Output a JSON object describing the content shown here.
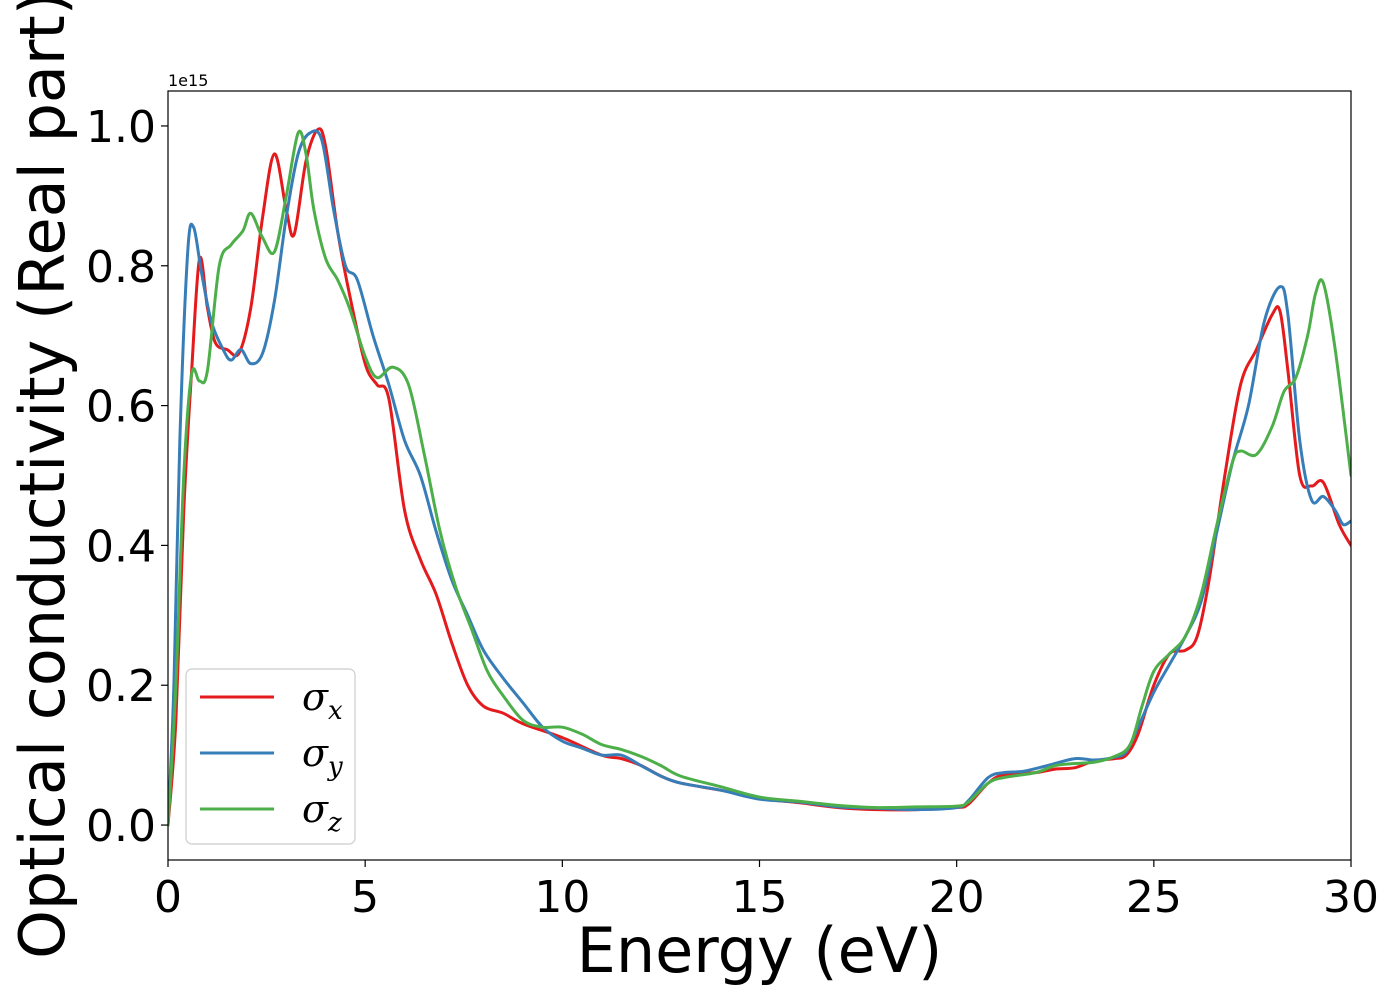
{
  "chart_data": {
    "type": "line",
    "title": "",
    "xlabel": "Energy (eV)",
    "ylabel": "Optical conductivity (Real part)",
    "y_offset_label": "1e15",
    "xlim": [
      0,
      30
    ],
    "ylim": [
      -0.05,
      1.05
    ],
    "x_ticks": [
      0,
      5,
      10,
      15,
      20,
      25,
      30
    ],
    "x_tick_labels": [
      "0",
      "5",
      "10",
      "15",
      "20",
      "25",
      "30"
    ],
    "y_ticks": [
      0.0,
      0.2,
      0.4,
      0.6,
      0.8,
      1.0
    ],
    "y_tick_labels": [
      "0.0",
      "0.2",
      "0.4",
      "0.6",
      "0.8",
      "1.0"
    ],
    "grid": false,
    "legend_position": "lower-left",
    "series": [
      {
        "name": "σx",
        "legend_base": "σ",
        "legend_sub": "x",
        "color": "#e41a1c",
        "points": [
          [
            0,
            0
          ],
          [
            0.2,
            0.15
          ],
          [
            0.4,
            0.45
          ],
          [
            0.6,
            0.65
          ],
          [
            0.8,
            0.81
          ],
          [
            1.0,
            0.74
          ],
          [
            1.2,
            0.69
          ],
          [
            1.5,
            0.68
          ],
          [
            1.8,
            0.675
          ],
          [
            2.1,
            0.74
          ],
          [
            2.4,
            0.87
          ],
          [
            2.7,
            0.96
          ],
          [
            3.0,
            0.88
          ],
          [
            3.2,
            0.845
          ],
          [
            3.5,
            0.95
          ],
          [
            3.8,
            0.995
          ],
          [
            4.0,
            0.97
          ],
          [
            4.3,
            0.85
          ],
          [
            4.6,
            0.76
          ],
          [
            5.0,
            0.66
          ],
          [
            5.3,
            0.63
          ],
          [
            5.6,
            0.61
          ],
          [
            6.0,
            0.45
          ],
          [
            6.4,
            0.38
          ],
          [
            6.8,
            0.33
          ],
          [
            7.2,
            0.26
          ],
          [
            7.6,
            0.2
          ],
          [
            8.0,
            0.17
          ],
          [
            8.5,
            0.16
          ],
          [
            9.0,
            0.145
          ],
          [
            10.0,
            0.125
          ],
          [
            11.0,
            0.1
          ],
          [
            11.5,
            0.095
          ],
          [
            12.0,
            0.085
          ],
          [
            12.5,
            0.07
          ],
          [
            13.0,
            0.06
          ],
          [
            14.0,
            0.05
          ],
          [
            15.0,
            0.038
          ],
          [
            16.0,
            0.032
          ],
          [
            17.0,
            0.025
          ],
          [
            18.0,
            0.022
          ],
          [
            19.0,
            0.022
          ],
          [
            20.0,
            0.025
          ],
          [
            20.3,
            0.03
          ],
          [
            20.8,
            0.06
          ],
          [
            21.2,
            0.072
          ],
          [
            22.0,
            0.075
          ],
          [
            22.5,
            0.08
          ],
          [
            23.0,
            0.082
          ],
          [
            23.5,
            0.092
          ],
          [
            24.0,
            0.095
          ],
          [
            24.3,
            0.1
          ],
          [
            24.6,
            0.13
          ],
          [
            25.0,
            0.2
          ],
          [
            25.4,
            0.245
          ],
          [
            25.8,
            0.25
          ],
          [
            26.1,
            0.27
          ],
          [
            26.4,
            0.35
          ],
          [
            26.8,
            0.5
          ],
          [
            27.2,
            0.63
          ],
          [
            27.6,
            0.68
          ],
          [
            28.0,
            0.73
          ],
          [
            28.2,
            0.735
          ],
          [
            28.4,
            0.65
          ],
          [
            28.7,
            0.5
          ],
          [
            29.0,
            0.485
          ],
          [
            29.3,
            0.49
          ],
          [
            29.7,
            0.43
          ],
          [
            30.0,
            0.4
          ]
        ]
      },
      {
        "name": "σy",
        "legend_base": "σ",
        "legend_sub": "y",
        "color": "#377eb8",
        "points": [
          [
            0,
            0
          ],
          [
            0.15,
            0.2
          ],
          [
            0.3,
            0.55
          ],
          [
            0.5,
            0.82
          ],
          [
            0.65,
            0.855
          ],
          [
            0.85,
            0.79
          ],
          [
            1.1,
            0.72
          ],
          [
            1.4,
            0.68
          ],
          [
            1.6,
            0.665
          ],
          [
            1.85,
            0.68
          ],
          [
            2.1,
            0.66
          ],
          [
            2.4,
            0.675
          ],
          [
            2.7,
            0.75
          ],
          [
            3.0,
            0.87
          ],
          [
            3.3,
            0.96
          ],
          [
            3.6,
            0.99
          ],
          [
            3.9,
            0.98
          ],
          [
            4.2,
            0.88
          ],
          [
            4.5,
            0.8
          ],
          [
            4.8,
            0.78
          ],
          [
            5.2,
            0.7
          ],
          [
            5.6,
            0.63
          ],
          [
            6.0,
            0.55
          ],
          [
            6.4,
            0.5
          ],
          [
            6.8,
            0.42
          ],
          [
            7.2,
            0.35
          ],
          [
            7.6,
            0.3
          ],
          [
            8.0,
            0.25
          ],
          [
            8.5,
            0.21
          ],
          [
            9.0,
            0.175
          ],
          [
            9.5,
            0.14
          ],
          [
            10.0,
            0.12
          ],
          [
            10.5,
            0.11
          ],
          [
            11.0,
            0.1
          ],
          [
            11.5,
            0.1
          ],
          [
            12.0,
            0.085
          ],
          [
            12.5,
            0.07
          ],
          [
            13.0,
            0.06
          ],
          [
            14.0,
            0.05
          ],
          [
            15.0,
            0.037
          ],
          [
            16.0,
            0.033
          ],
          [
            17.0,
            0.026
          ],
          [
            18.0,
            0.024
          ],
          [
            19.0,
            0.022
          ],
          [
            20.0,
            0.025
          ],
          [
            20.3,
            0.035
          ],
          [
            20.8,
            0.068
          ],
          [
            21.2,
            0.075
          ],
          [
            21.7,
            0.077
          ],
          [
            22.3,
            0.085
          ],
          [
            23.0,
            0.095
          ],
          [
            23.5,
            0.093
          ],
          [
            24.0,
            0.097
          ],
          [
            24.3,
            0.105
          ],
          [
            24.6,
            0.14
          ],
          [
            25.0,
            0.19
          ],
          [
            25.4,
            0.23
          ],
          [
            25.8,
            0.27
          ],
          [
            26.2,
            0.32
          ],
          [
            26.6,
            0.42
          ],
          [
            27.0,
            0.52
          ],
          [
            27.4,
            0.6
          ],
          [
            27.8,
            0.72
          ],
          [
            28.2,
            0.77
          ],
          [
            28.4,
            0.73
          ],
          [
            28.7,
            0.55
          ],
          [
            29.0,
            0.465
          ],
          [
            29.3,
            0.47
          ],
          [
            29.6,
            0.45
          ],
          [
            29.8,
            0.43
          ],
          [
            30.0,
            0.435
          ]
        ]
      },
      {
        "name": "σz",
        "legend_base": "σ",
        "legend_sub": "z",
        "color": "#4daf4a",
        "points": [
          [
            0,
            0
          ],
          [
            0.2,
            0.2
          ],
          [
            0.4,
            0.5
          ],
          [
            0.6,
            0.645
          ],
          [
            0.8,
            0.635
          ],
          [
            1.0,
            0.65
          ],
          [
            1.3,
            0.8
          ],
          [
            1.6,
            0.83
          ],
          [
            1.9,
            0.85
          ],
          [
            2.1,
            0.875
          ],
          [
            2.4,
            0.84
          ],
          [
            2.7,
            0.82
          ],
          [
            3.0,
            0.9
          ],
          [
            3.3,
            0.99
          ],
          [
            3.5,
            0.96
          ],
          [
            3.7,
            0.88
          ],
          [
            4.0,
            0.81
          ],
          [
            4.3,
            0.78
          ],
          [
            4.6,
            0.74
          ],
          [
            5.0,
            0.67
          ],
          [
            5.3,
            0.64
          ],
          [
            5.7,
            0.655
          ],
          [
            6.1,
            0.63
          ],
          [
            6.5,
            0.53
          ],
          [
            6.9,
            0.42
          ],
          [
            7.3,
            0.34
          ],
          [
            7.7,
            0.28
          ],
          [
            8.1,
            0.22
          ],
          [
            8.5,
            0.185
          ],
          [
            9.0,
            0.15
          ],
          [
            9.5,
            0.14
          ],
          [
            10.0,
            0.14
          ],
          [
            10.5,
            0.13
          ],
          [
            11.0,
            0.115
          ],
          [
            11.5,
            0.108
          ],
          [
            12.0,
            0.098
          ],
          [
            12.5,
            0.085
          ],
          [
            13.0,
            0.07
          ],
          [
            14.0,
            0.055
          ],
          [
            15.0,
            0.04
          ],
          [
            16.0,
            0.034
          ],
          [
            17.0,
            0.028
          ],
          [
            18.0,
            0.025
          ],
          [
            19.0,
            0.026
          ],
          [
            20.0,
            0.027
          ],
          [
            20.3,
            0.033
          ],
          [
            20.8,
            0.06
          ],
          [
            21.2,
            0.068
          ],
          [
            22.0,
            0.075
          ],
          [
            22.5,
            0.085
          ],
          [
            23.0,
            0.088
          ],
          [
            23.5,
            0.09
          ],
          [
            24.0,
            0.098
          ],
          [
            24.4,
            0.115
          ],
          [
            24.7,
            0.17
          ],
          [
            25.0,
            0.22
          ],
          [
            25.4,
            0.245
          ],
          [
            25.8,
            0.27
          ],
          [
            26.2,
            0.33
          ],
          [
            26.6,
            0.43
          ],
          [
            27.0,
            0.52
          ],
          [
            27.2,
            0.535
          ],
          [
            27.6,
            0.53
          ],
          [
            28.0,
            0.57
          ],
          [
            28.3,
            0.62
          ],
          [
            28.6,
            0.64
          ],
          [
            28.9,
            0.7
          ],
          [
            29.1,
            0.76
          ],
          [
            29.3,
            0.775
          ],
          [
            29.6,
            0.68
          ],
          [
            30.0,
            0.5
          ]
        ]
      }
    ]
  }
}
